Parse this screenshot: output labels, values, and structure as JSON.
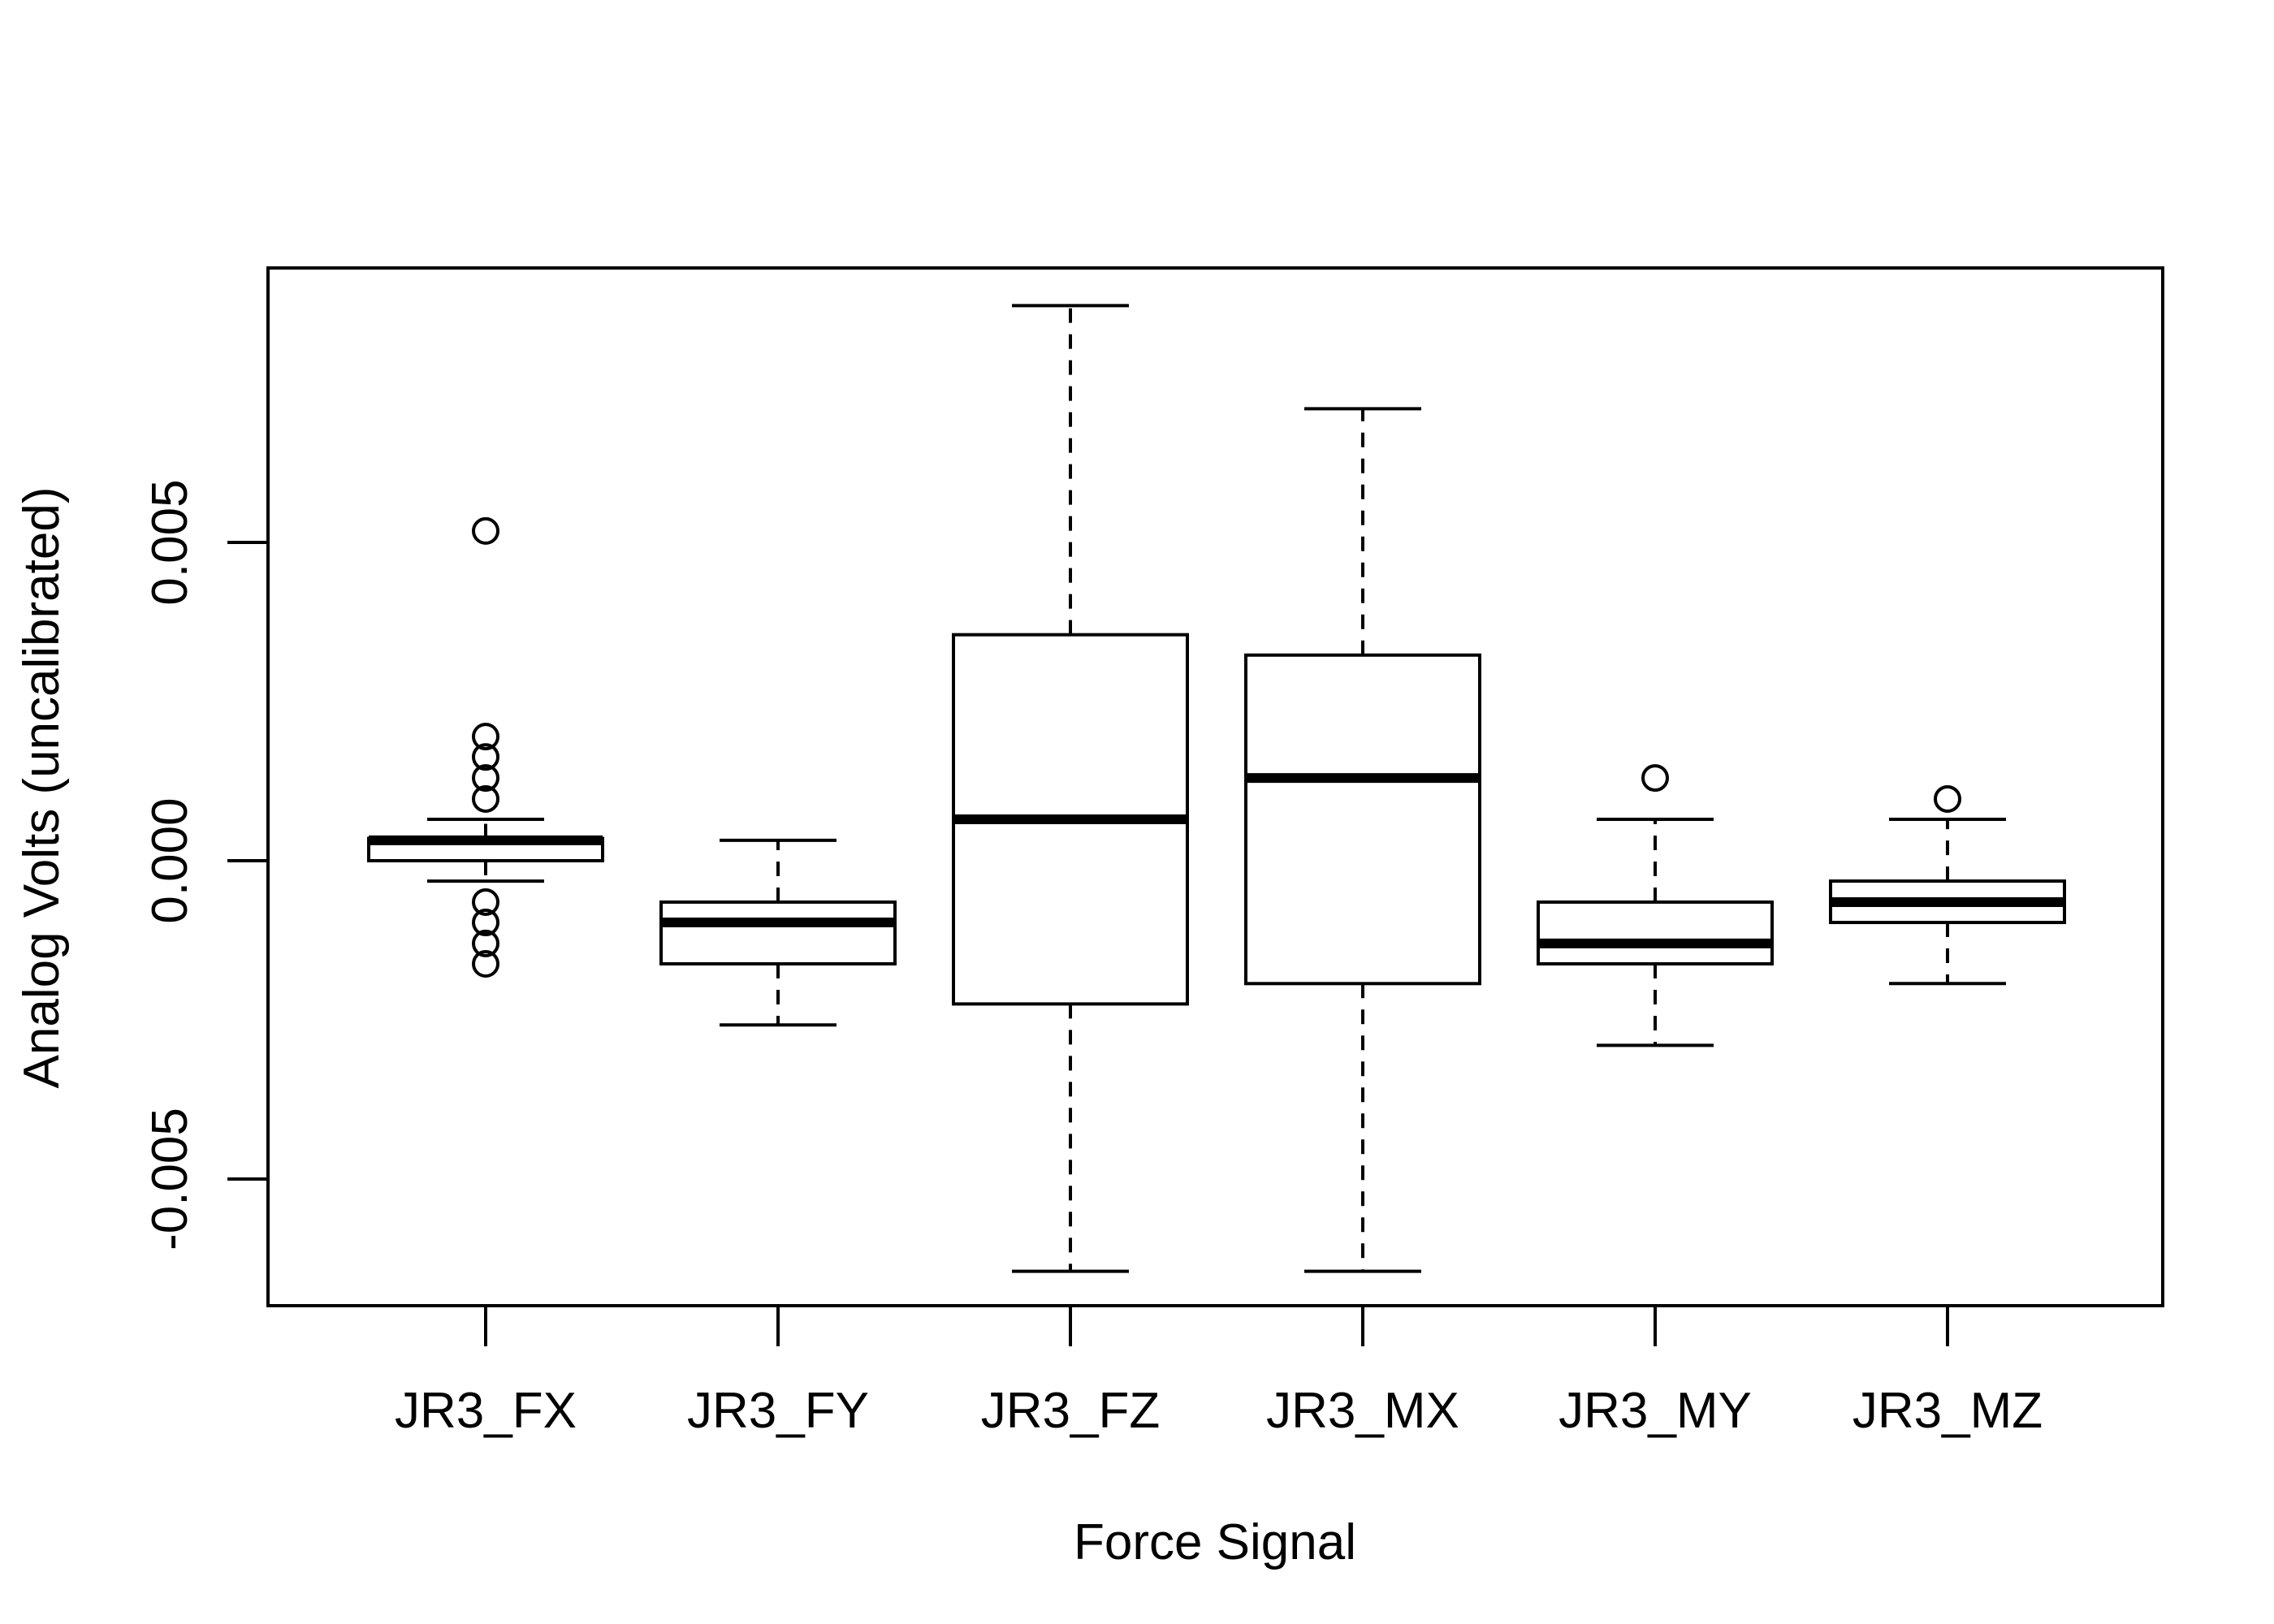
{
  "chart_data": {
    "type": "boxplot",
    "title": "",
    "xlabel": "Force Signal",
    "ylabel": "Analog Volts (uncalibrated)",
    "ylim": [
      -0.0069,
      0.0093
    ],
    "yticks": [
      -0.005,
      0.0,
      0.005
    ],
    "ytick_labels": [
      "-0.005",
      "0.000",
      "0.005"
    ],
    "grid": false,
    "categories": [
      "JR3_FX",
      "JR3_FY",
      "JR3_FZ",
      "JR3_MX",
      "JR3_MY",
      "JR3_MZ"
    ],
    "boxes": [
      {
        "whisker_low": -0.00032,
        "q1": 0.0,
        "median": 0.00032,
        "q3": 0.00035,
        "whisker_high": 0.00065,
        "outliers": [
          0.00518,
          0.00195,
          0.00163,
          0.0013,
          0.00097,
          -0.00065,
          -0.00097,
          -0.0013,
          -0.00162
        ]
      },
      {
        "whisker_low": -0.00258,
        "q1": -0.00162,
        "median": -0.00097,
        "q3": -0.00065,
        "whisker_high": 0.00032,
        "outliers": []
      },
      {
        "whisker_low": -0.00645,
        "q1": -0.00225,
        "median": 0.00065,
        "q3": 0.00355,
        "whisker_high": 0.00872,
        "outliers": []
      },
      {
        "whisker_low": -0.00645,
        "q1": -0.00193,
        "median": 0.0013,
        "q3": 0.00323,
        "whisker_high": 0.0071,
        "outliers": []
      },
      {
        "whisker_low": -0.0029,
        "q1": -0.00162,
        "median": -0.0013,
        "q3": -0.00065,
        "whisker_high": 0.00065,
        "outliers": [
          0.0013
        ]
      },
      {
        "whisker_low": -0.00193,
        "q1": -0.00097,
        "median": -0.00065,
        "q3": -0.00032,
        "whisker_high": 0.00065,
        "outliers": [
          0.00097
        ]
      }
    ]
  }
}
